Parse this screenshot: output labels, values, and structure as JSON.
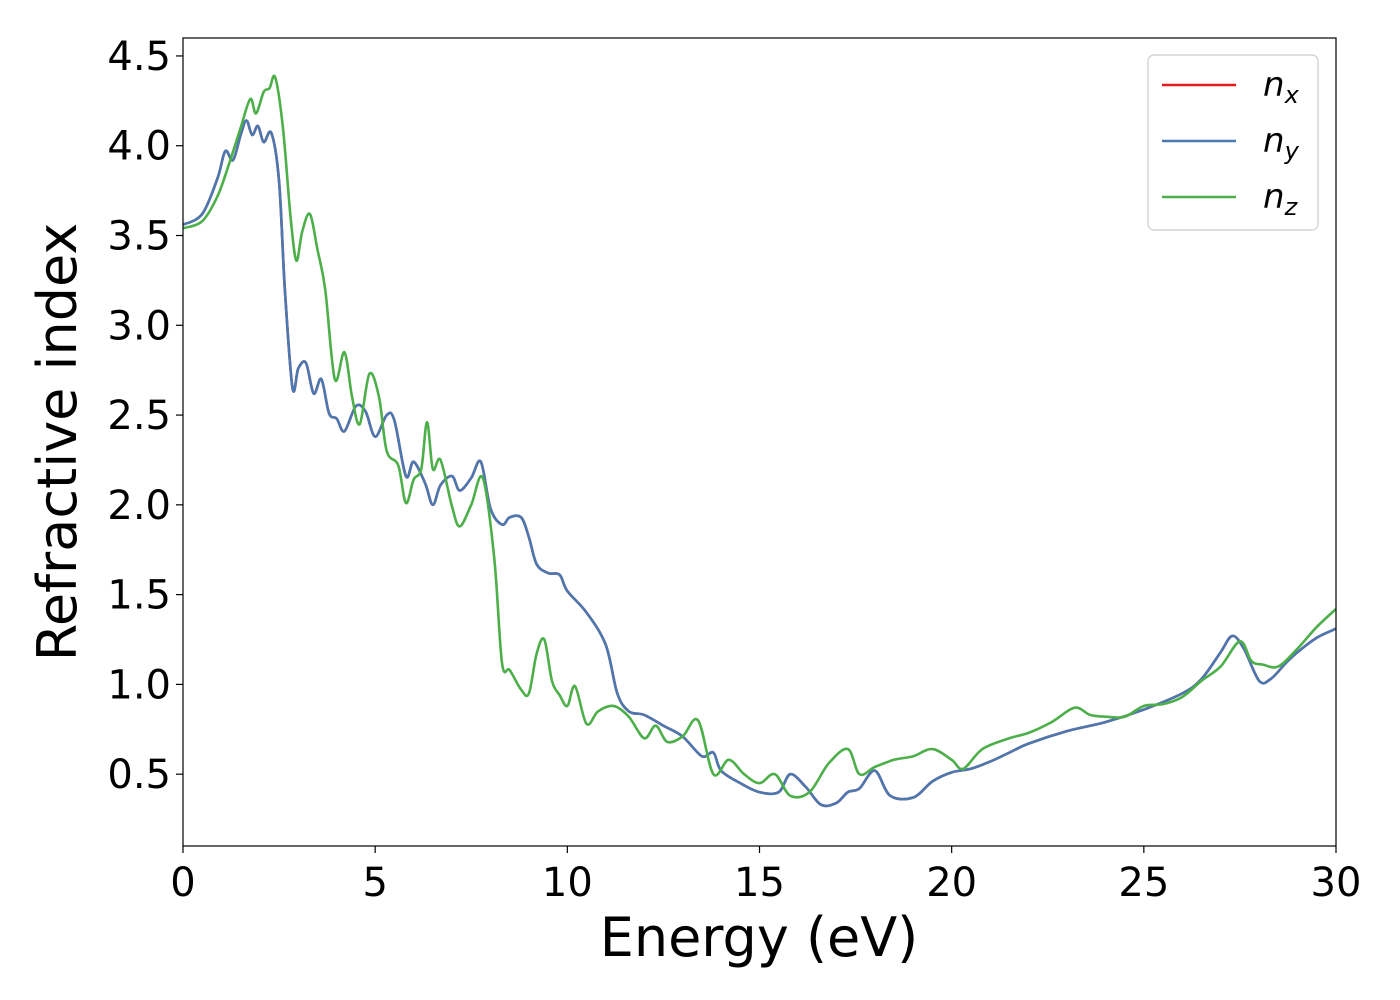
{
  "chart_data": {
    "type": "line",
    "title": "",
    "xlabel": "Energy (eV)",
    "ylabel": "Refractive index",
    "xlim": [
      0,
      30
    ],
    "ylim": [
      0.1,
      4.6
    ],
    "xticks": [
      0,
      5,
      10,
      15,
      20,
      25,
      30
    ],
    "xtick_labels": [
      "0",
      "5",
      "10",
      "15",
      "20",
      "25",
      "30"
    ],
    "yticks": [
      0.5,
      1.0,
      1.5,
      2.0,
      2.5,
      3.0,
      3.5,
      4.0,
      4.5
    ],
    "ytick_labels": [
      "0.5",
      "1.0",
      "1.5",
      "2.0",
      "2.5",
      "3.0",
      "3.5",
      "4.0",
      "4.5"
    ],
    "grid": false,
    "legend_position": "top-right",
    "series": [
      {
        "name": "n",
        "subscript": "x",
        "color": "#e41a1c",
        "points": [
          [
            0,
            3.56
          ],
          [
            0.5,
            3.62
          ],
          [
            0.9,
            3.82
          ],
          [
            1.1,
            3.97
          ],
          [
            1.3,
            3.92
          ],
          [
            1.5,
            4.06
          ],
          [
            1.65,
            4.14
          ],
          [
            1.8,
            4.06
          ],
          [
            1.95,
            4.11
          ],
          [
            2.1,
            4.02
          ],
          [
            2.3,
            4.07
          ],
          [
            2.5,
            3.8
          ],
          [
            2.65,
            3.2
          ],
          [
            2.85,
            2.65
          ],
          [
            3.0,
            2.76
          ],
          [
            3.2,
            2.79
          ],
          [
            3.4,
            2.62
          ],
          [
            3.6,
            2.7
          ],
          [
            3.8,
            2.51
          ],
          [
            4.0,
            2.48
          ],
          [
            4.2,
            2.41
          ],
          [
            4.5,
            2.55
          ],
          [
            4.75,
            2.52
          ],
          [
            5.0,
            2.38
          ],
          [
            5.3,
            2.5
          ],
          [
            5.5,
            2.47
          ],
          [
            5.8,
            2.16
          ],
          [
            6.0,
            2.24
          ],
          [
            6.3,
            2.12
          ],
          [
            6.5,
            2.0
          ],
          [
            6.7,
            2.11
          ],
          [
            7.0,
            2.16
          ],
          [
            7.2,
            2.08
          ],
          [
            7.5,
            2.15
          ],
          [
            7.75,
            2.24
          ],
          [
            8.0,
            1.98
          ],
          [
            8.3,
            1.89
          ],
          [
            8.5,
            1.93
          ],
          [
            8.8,
            1.93
          ],
          [
            9.0,
            1.82
          ],
          [
            9.2,
            1.67
          ],
          [
            9.5,
            1.62
          ],
          [
            9.8,
            1.61
          ],
          [
            10.0,
            1.52
          ],
          [
            10.5,
            1.4
          ],
          [
            11.0,
            1.22
          ],
          [
            11.3,
            0.95
          ],
          [
            11.6,
            0.85
          ],
          [
            12.0,
            0.83
          ],
          [
            12.5,
            0.77
          ],
          [
            13.0,
            0.71
          ],
          [
            13.5,
            0.6
          ],
          [
            13.8,
            0.62
          ],
          [
            14.0,
            0.52
          ],
          [
            14.5,
            0.45
          ],
          [
            15.0,
            0.4
          ],
          [
            15.5,
            0.4
          ],
          [
            15.8,
            0.5
          ],
          [
            16.2,
            0.43
          ],
          [
            16.6,
            0.33
          ],
          [
            17.0,
            0.34
          ],
          [
            17.3,
            0.4
          ],
          [
            17.6,
            0.42
          ],
          [
            18.0,
            0.52
          ],
          [
            18.4,
            0.38
          ],
          [
            19.0,
            0.37
          ],
          [
            19.5,
            0.46
          ],
          [
            20.0,
            0.51
          ],
          [
            20.5,
            0.53
          ],
          [
            21.0,
            0.57
          ],
          [
            21.5,
            0.62
          ],
          [
            22.0,
            0.67
          ],
          [
            23.0,
            0.74
          ],
          [
            24.0,
            0.79
          ],
          [
            25.0,
            0.86
          ],
          [
            26.0,
            0.95
          ],
          [
            26.5,
            1.03
          ],
          [
            27.0,
            1.18
          ],
          [
            27.3,
            1.27
          ],
          [
            27.6,
            1.2
          ],
          [
            28.0,
            1.02
          ],
          [
            28.3,
            1.03
          ],
          [
            28.7,
            1.12
          ],
          [
            29.0,
            1.18
          ],
          [
            29.5,
            1.26
          ],
          [
            30.0,
            1.31
          ]
        ]
      },
      {
        "name": "n",
        "subscript": "y",
        "color": "#4a78b0",
        "points": [
          [
            0,
            3.56
          ],
          [
            0.5,
            3.62
          ],
          [
            0.9,
            3.82
          ],
          [
            1.1,
            3.97
          ],
          [
            1.3,
            3.92
          ],
          [
            1.5,
            4.06
          ],
          [
            1.65,
            4.14
          ],
          [
            1.8,
            4.06
          ],
          [
            1.95,
            4.11
          ],
          [
            2.1,
            4.02
          ],
          [
            2.3,
            4.07
          ],
          [
            2.5,
            3.8
          ],
          [
            2.65,
            3.2
          ],
          [
            2.85,
            2.65
          ],
          [
            3.0,
            2.76
          ],
          [
            3.2,
            2.79
          ],
          [
            3.4,
            2.62
          ],
          [
            3.6,
            2.7
          ],
          [
            3.8,
            2.51
          ],
          [
            4.0,
            2.48
          ],
          [
            4.2,
            2.41
          ],
          [
            4.5,
            2.55
          ],
          [
            4.75,
            2.52
          ],
          [
            5.0,
            2.38
          ],
          [
            5.3,
            2.5
          ],
          [
            5.5,
            2.47
          ],
          [
            5.8,
            2.16
          ],
          [
            6.0,
            2.24
          ],
          [
            6.3,
            2.12
          ],
          [
            6.5,
            2.0
          ],
          [
            6.7,
            2.11
          ],
          [
            7.0,
            2.16
          ],
          [
            7.2,
            2.08
          ],
          [
            7.5,
            2.15
          ],
          [
            7.75,
            2.24
          ],
          [
            8.0,
            1.98
          ],
          [
            8.3,
            1.89
          ],
          [
            8.5,
            1.93
          ],
          [
            8.8,
            1.93
          ],
          [
            9.0,
            1.82
          ],
          [
            9.2,
            1.67
          ],
          [
            9.5,
            1.62
          ],
          [
            9.8,
            1.61
          ],
          [
            10.0,
            1.52
          ],
          [
            10.5,
            1.4
          ],
          [
            11.0,
            1.22
          ],
          [
            11.3,
            0.95
          ],
          [
            11.6,
            0.85
          ],
          [
            12.0,
            0.83
          ],
          [
            12.5,
            0.77
          ],
          [
            13.0,
            0.71
          ],
          [
            13.5,
            0.6
          ],
          [
            13.8,
            0.62
          ],
          [
            14.0,
            0.52
          ],
          [
            14.5,
            0.45
          ],
          [
            15.0,
            0.4
          ],
          [
            15.5,
            0.4
          ],
          [
            15.8,
            0.5
          ],
          [
            16.2,
            0.43
          ],
          [
            16.6,
            0.33
          ],
          [
            17.0,
            0.34
          ],
          [
            17.3,
            0.4
          ],
          [
            17.6,
            0.42
          ],
          [
            18.0,
            0.52
          ],
          [
            18.4,
            0.38
          ],
          [
            19.0,
            0.37
          ],
          [
            19.5,
            0.46
          ],
          [
            20.0,
            0.51
          ],
          [
            20.5,
            0.53
          ],
          [
            21.0,
            0.57
          ],
          [
            21.5,
            0.62
          ],
          [
            22.0,
            0.67
          ],
          [
            23.0,
            0.74
          ],
          [
            24.0,
            0.79
          ],
          [
            25.0,
            0.86
          ],
          [
            26.0,
            0.95
          ],
          [
            26.5,
            1.03
          ],
          [
            27.0,
            1.18
          ],
          [
            27.3,
            1.27
          ],
          [
            27.6,
            1.2
          ],
          [
            28.0,
            1.02
          ],
          [
            28.3,
            1.03
          ],
          [
            28.7,
            1.12
          ],
          [
            29.0,
            1.18
          ],
          [
            29.5,
            1.26
          ],
          [
            30.0,
            1.31
          ]
        ]
      },
      {
        "name": "n",
        "subscript": "z",
        "color": "#4daf4a",
        "points": [
          [
            0,
            3.54
          ],
          [
            0.5,
            3.58
          ],
          [
            0.9,
            3.72
          ],
          [
            1.2,
            3.9
          ],
          [
            1.5,
            4.1
          ],
          [
            1.75,
            4.26
          ],
          [
            1.9,
            4.18
          ],
          [
            2.1,
            4.3
          ],
          [
            2.25,
            4.32
          ],
          [
            2.4,
            4.38
          ],
          [
            2.6,
            4.1
          ],
          [
            2.8,
            3.6
          ],
          [
            2.95,
            3.36
          ],
          [
            3.1,
            3.52
          ],
          [
            3.3,
            3.62
          ],
          [
            3.5,
            3.42
          ],
          [
            3.7,
            3.2
          ],
          [
            3.95,
            2.7
          ],
          [
            4.2,
            2.85
          ],
          [
            4.4,
            2.6
          ],
          [
            4.6,
            2.45
          ],
          [
            4.85,
            2.73
          ],
          [
            5.1,
            2.6
          ],
          [
            5.3,
            2.3
          ],
          [
            5.6,
            2.22
          ],
          [
            5.8,
            2.01
          ],
          [
            6.0,
            2.14
          ],
          [
            6.2,
            2.2
          ],
          [
            6.35,
            2.46
          ],
          [
            6.5,
            2.2
          ],
          [
            6.7,
            2.25
          ],
          [
            7.0,
            1.99
          ],
          [
            7.2,
            1.88
          ],
          [
            7.5,
            2.0
          ],
          [
            7.8,
            2.15
          ],
          [
            8.1,
            1.7
          ],
          [
            8.3,
            1.12
          ],
          [
            8.5,
            1.08
          ],
          [
            8.8,
            0.97
          ],
          [
            9.0,
            0.95
          ],
          [
            9.2,
            1.17
          ],
          [
            9.4,
            1.25
          ],
          [
            9.6,
            1.02
          ],
          [
            9.8,
            0.94
          ],
          [
            10.0,
            0.88
          ],
          [
            10.2,
            0.99
          ],
          [
            10.5,
            0.78
          ],
          [
            10.8,
            0.85
          ],
          [
            11.2,
            0.88
          ],
          [
            11.6,
            0.82
          ],
          [
            12.0,
            0.7
          ],
          [
            12.3,
            0.77
          ],
          [
            12.6,
            0.68
          ],
          [
            13.0,
            0.71
          ],
          [
            13.4,
            0.8
          ],
          [
            13.8,
            0.5
          ],
          [
            14.2,
            0.58
          ],
          [
            14.6,
            0.5
          ],
          [
            15.0,
            0.45
          ],
          [
            15.4,
            0.5
          ],
          [
            15.8,
            0.38
          ],
          [
            16.3,
            0.4
          ],
          [
            16.8,
            0.56
          ],
          [
            17.3,
            0.64
          ],
          [
            17.6,
            0.5
          ],
          [
            18.0,
            0.54
          ],
          [
            18.5,
            0.58
          ],
          [
            19.0,
            0.6
          ],
          [
            19.5,
            0.64
          ],
          [
            20.0,
            0.58
          ],
          [
            20.3,
            0.53
          ],
          [
            20.8,
            0.64
          ],
          [
            21.5,
            0.7
          ],
          [
            22.0,
            0.73
          ],
          [
            22.6,
            0.79
          ],
          [
            23.2,
            0.87
          ],
          [
            23.6,
            0.83
          ],
          [
            24.0,
            0.82
          ],
          [
            24.5,
            0.82
          ],
          [
            25.0,
            0.88
          ],
          [
            25.5,
            0.89
          ],
          [
            26.0,
            0.93
          ],
          [
            26.5,
            1.02
          ],
          [
            27.0,
            1.1
          ],
          [
            27.5,
            1.24
          ],
          [
            27.8,
            1.13
          ],
          [
            28.1,
            1.11
          ],
          [
            28.5,
            1.1
          ],
          [
            29.0,
            1.2
          ],
          [
            29.5,
            1.32
          ],
          [
            30.0,
            1.42
          ]
        ]
      }
    ]
  }
}
